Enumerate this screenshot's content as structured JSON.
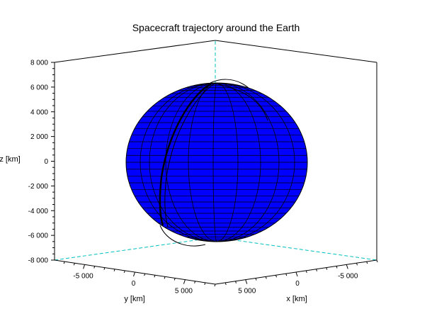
{
  "chart_data": {
    "type": "3d-surface-with-trajectory",
    "title": "Spacecraft trajectory around the Earth",
    "xlabel": "x [km]",
    "ylabel": "y [km]",
    "zlabel": "z [km]",
    "z_ticks": [
      {
        "value": 8000,
        "label": "8 000"
      },
      {
        "value": 6000,
        "label": "6 000"
      },
      {
        "value": 4000,
        "label": "4 000"
      },
      {
        "value": 2000,
        "label": "2 000"
      },
      {
        "value": 0,
        "label": "0"
      },
      {
        "value": -2000,
        "label": "-2 000"
      },
      {
        "value": -4000,
        "label": "-4 000"
      },
      {
        "value": -6000,
        "label": "-6 000"
      },
      {
        "value": -8000,
        "label": "-8 000"
      }
    ],
    "y_ticks": [
      {
        "value": -5000,
        "label": "-5 000"
      },
      {
        "value": 0,
        "label": "0"
      },
      {
        "value": 5000,
        "label": "5 000"
      }
    ],
    "x_ticks": [
      {
        "value": 5000,
        "label": "5 000"
      },
      {
        "value": 0,
        "label": "0"
      },
      {
        "value": -5000,
        "label": "-5 000"
      }
    ],
    "zlim": [
      -8000,
      8000
    ],
    "sphere_radius_km": 6378,
    "sphere_color": "#0000ff",
    "trajectory_color": "#000000",
    "box_color": "#000000",
    "hidden_edge_color": "#00bfbf"
  }
}
